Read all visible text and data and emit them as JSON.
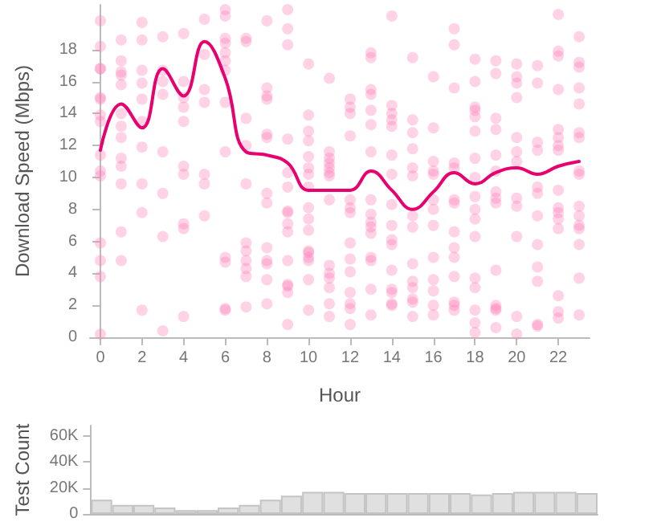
{
  "chart_data": [
    {
      "type": "scatter",
      "xlabel": "Hour",
      "ylabel": "Download Speed (Mbps)",
      "xlim": [
        -0.5,
        23.5
      ],
      "ylim": [
        0,
        20.8
      ],
      "xticks": [
        0,
        2,
        4,
        6,
        8,
        10,
        12,
        14,
        16,
        18,
        20,
        22
      ],
      "yticks": [
        0,
        2,
        4,
        6,
        8,
        10,
        12,
        14,
        16,
        18
      ],
      "grid": false,
      "series": [
        {
          "type": "scatter",
          "color": "#ff7fb8",
          "marker": "circle",
          "x": [
            0,
            0,
            0,
            0,
            0,
            0,
            0,
            0,
            0,
            0,
            0,
            0,
            0,
            0,
            0,
            1,
            1,
            1,
            1,
            1,
            1,
            1,
            1,
            1,
            1,
            1,
            1,
            1,
            2,
            2,
            2,
            2,
            2,
            2,
            2,
            2,
            2,
            2,
            3,
            3,
            3,
            3,
            3,
            3,
            3,
            3,
            4,
            4,
            4,
            4,
            4,
            4,
            4,
            4,
            4,
            4,
            5,
            5,
            5,
            5,
            5,
            5,
            5,
            6,
            6,
            6,
            6,
            6,
            6,
            6,
            6,
            6,
            6,
            6,
            6,
            6,
            7,
            7,
            7,
            7,
            7,
            7,
            7,
            7,
            7,
            7,
            7,
            8,
            8,
            8,
            8,
            8,
            8,
            8,
            8,
            8,
            8,
            8,
            8,
            8,
            9,
            9,
            9,
            9,
            9,
            9,
            9,
            9,
            9,
            9,
            9,
            9,
            9,
            9,
            9,
            10,
            10,
            10,
            10,
            10,
            10,
            10,
            10,
            10,
            10,
            10,
            10,
            10,
            10,
            10,
            10,
            10,
            11,
            11,
            11,
            11,
            11,
            11,
            11,
            11,
            11,
            11,
            11,
            11,
            11,
            11,
            12,
            12,
            12,
            12,
            12,
            12,
            12,
            12,
            12,
            12,
            12,
            12,
            12,
            12,
            13,
            13,
            13,
            13,
            13,
            13,
            13,
            13,
            13,
            13,
            13,
            13,
            13,
            13,
            13,
            13,
            14,
            14,
            14,
            14,
            14,
            14,
            14,
            14,
            14,
            14,
            14,
            14,
            14,
            14,
            14,
            14,
            15,
            15,
            15,
            15,
            15,
            15,
            15,
            15,
            15,
            15,
            15,
            15,
            15,
            15,
            16,
            16,
            16,
            16,
            16,
            16,
            16,
            16,
            16,
            16,
            16,
            16,
            16,
            17,
            17,
            17,
            17,
            17,
            17,
            17,
            17,
            17,
            17,
            17,
            17,
            17,
            17,
            18,
            18,
            18,
            18,
            18,
            18,
            18,
            18,
            18,
            18,
            18,
            18,
            18,
            18,
            18,
            18,
            18,
            19,
            19,
            19,
            19,
            19,
            19,
            19,
            19,
            19,
            19,
            19,
            19,
            19,
            19,
            20,
            20,
            20,
            20,
            20,
            20,
            20,
            20,
            20,
            20,
            20,
            20,
            21,
            21,
            21,
            21,
            21,
            21,
            21,
            21,
            21,
            21,
            21,
            21,
            22,
            22,
            22,
            22,
            22,
            22,
            22,
            22,
            22,
            22,
            22,
            22,
            22,
            22,
            22,
            22,
            23,
            23,
            23,
            23,
            23,
            23,
            23,
            23,
            23,
            23,
            23,
            23,
            23,
            23,
            23,
            23
          ],
          "values": [
            19.8,
            18.2,
            16.8,
            16.8,
            15.0,
            14.9,
            13.9,
            13.5,
            11.4,
            10.4,
            10.1,
            5.9,
            4.8,
            3.8,
            0.2,
            18.6,
            17.3,
            16.6,
            16.4,
            15.8,
            14.0,
            13.2,
            12.5,
            11.2,
            10.7,
            9.6,
            6.6,
            4.8,
            19.7,
            18.6,
            16.7,
            15.9,
            14.9,
            13.5,
            11.9,
            9.6,
            7.8,
            1.7,
            18.8,
            16.7,
            16.0,
            15.2,
            11.6,
            9.0,
            6.3,
            0.4,
            19.0,
            16.0,
            15.0,
            14.4,
            13.5,
            10.7,
            10.2,
            7.1,
            6.8,
            1.3,
            19.9,
            17.7,
            15.5,
            14.7,
            10.2,
            9.6,
            7.6,
            20.5,
            20.1,
            18.7,
            18.4,
            17.8,
            17.3,
            16.7,
            14.7,
            11.6,
            5.0,
            4.7,
            1.8,
            1.7,
            18.7,
            18.5,
            13.7,
            12.0,
            9.6,
            5.9,
            5.4,
            4.8,
            4.3,
            3.8,
            1.9,
            19.8,
            15.6,
            15.1,
            14.9,
            12.7,
            12.5,
            9.0,
            8.4,
            5.6,
            4.8,
            4.6,
            3.6,
            2.1,
            20.5,
            19.3,
            18.3,
            12.4,
            10.3,
            9.4,
            7.9,
            7.8,
            7.1,
            6.6,
            4.8,
            3.3,
            3.2,
            2.8,
            0.8,
            17.1,
            13.9,
            12.9,
            12.3,
            11.3,
            10.6,
            10.2,
            9.4,
            8.1,
            7.4,
            6.7,
            5.4,
            5.3,
            5.0,
            4.8,
            3.6,
            1.7,
            16.2,
            11.6,
            11.2,
            10.9,
            10.6,
            10.3,
            10.1,
            8.6,
            4.5,
            4.0,
            3.7,
            3.1,
            2.1,
            1.3,
            14.9,
            14.4,
            14.0,
            12.6,
            8.6,
            8.1,
            7.8,
            5.9,
            4.9,
            4.1,
            2.8,
            2.1,
            1.8,
            0.8,
            17.8,
            17.5,
            15.5,
            15.2,
            14.2,
            13.3,
            11.6,
            8.6,
            7.7,
            7.2,
            6.9,
            6.5,
            5.0,
            4.8,
            3.0,
            1.4,
            20.1,
            14.5,
            14.0,
            13.6,
            13.2,
            11.4,
            10.2,
            8.3,
            7.0,
            6.1,
            5.8,
            4.2,
            3.0,
            2.8,
            2.1,
            2.0,
            17.5,
            13.6,
            12.8,
            11.8,
            10.6,
            10.1,
            7.6,
            6.9,
            4.6,
            3.5,
            3.1,
            2.4,
            2.2,
            1.3,
            16.3,
            13.1,
            11.0,
            10.4,
            10.2,
            8.6,
            8.0,
            7.0,
            5.0,
            3.6,
            2.9,
            2.0,
            1.4,
            19.3,
            18.3,
            15.6,
            10.9,
            10.6,
            8.6,
            8.4,
            6.6,
            5.6,
            5.0,
            3.8,
            2.2,
            2.0,
            1.7,
            17.4,
            16.0,
            14.4,
            14.2,
            13.8,
            12.9,
            11.2,
            10.0,
            8.8,
            8.0,
            7.4,
            6.3,
            3.7,
            3.1,
            1.7,
            0.9,
            0.3,
            17.3,
            16.5,
            13.7,
            13.0,
            11.4,
            10.4,
            9.1,
            8.7,
            8.4,
            4.2,
            2.0,
            1.8,
            1.7,
            0.6,
            17.1,
            16.3,
            15.9,
            15.0,
            12.5,
            11.6,
            11.0,
            8.7,
            8.2,
            6.3,
            1.3,
            0.2,
            17.0,
            15.9,
            12.2,
            11.7,
            9.4,
            9.0,
            7.6,
            5.8,
            4.4,
            3.5,
            0.8,
            0.7,
            20.2,
            17.9,
            17.6,
            15.5,
            13.0,
            12.5,
            12.0,
            11.7,
            9.2,
            8.1,
            7.8,
            7.4,
            6.8,
            2.6,
            1.6,
            1.2,
            18.8,
            17.2,
            16.9,
            15.6,
            14.6,
            12.8,
            12.5,
            10.4,
            10.2,
            8.2,
            7.6,
            7.0,
            6.8,
            5.8,
            3.7,
            1.4
          ]
        },
        {
          "type": "line",
          "color": "#e8006f",
          "marker": "none",
          "x": [
            0,
            1,
            2,
            3,
            4,
            5,
            6,
            7,
            8,
            9,
            10,
            11,
            12,
            13,
            14,
            15,
            16,
            17,
            18,
            19,
            20,
            21,
            22,
            23
          ],
          "values": [
            11.7,
            14.6,
            13.1,
            16.8,
            15.1,
            18.5,
            16.2,
            11.6,
            11.4,
            10.9,
            9.2,
            9.2,
            9.2,
            10.4,
            9.2,
            8.0,
            9.1,
            10.3,
            9.6,
            10.3,
            10.6,
            10.2,
            10.7,
            11.0
          ]
        }
      ]
    },
    {
      "type": "bar",
      "ylabel": "Test Count",
      "categories": [
        null,
        null,
        null,
        null,
        null,
        null,
        null,
        null,
        null,
        null,
        null,
        null,
        null,
        null,
        null,
        null,
        null,
        null,
        null,
        null,
        null,
        null,
        null,
        null
      ],
      "values": [
        11000,
        7000,
        7000,
        5000,
        3000,
        3000,
        5000,
        7000,
        11000,
        14000,
        17000,
        17000,
        16000,
        16000,
        16000,
        16000,
        16000,
        16000,
        15000,
        16000,
        17000,
        17000,
        17000,
        16000
      ],
      "color": "#e0e0e0",
      "ylim": [
        0,
        68000
      ],
      "yticks": [
        0,
        {
          "value": 20000,
          "label": "20K"
        },
        {
          "value": 40000,
          "label": "40K"
        },
        {
          "value": 60000,
          "label": "60K"
        }
      ],
      "tick_labels": "y",
      "grid": false
    }
  ]
}
